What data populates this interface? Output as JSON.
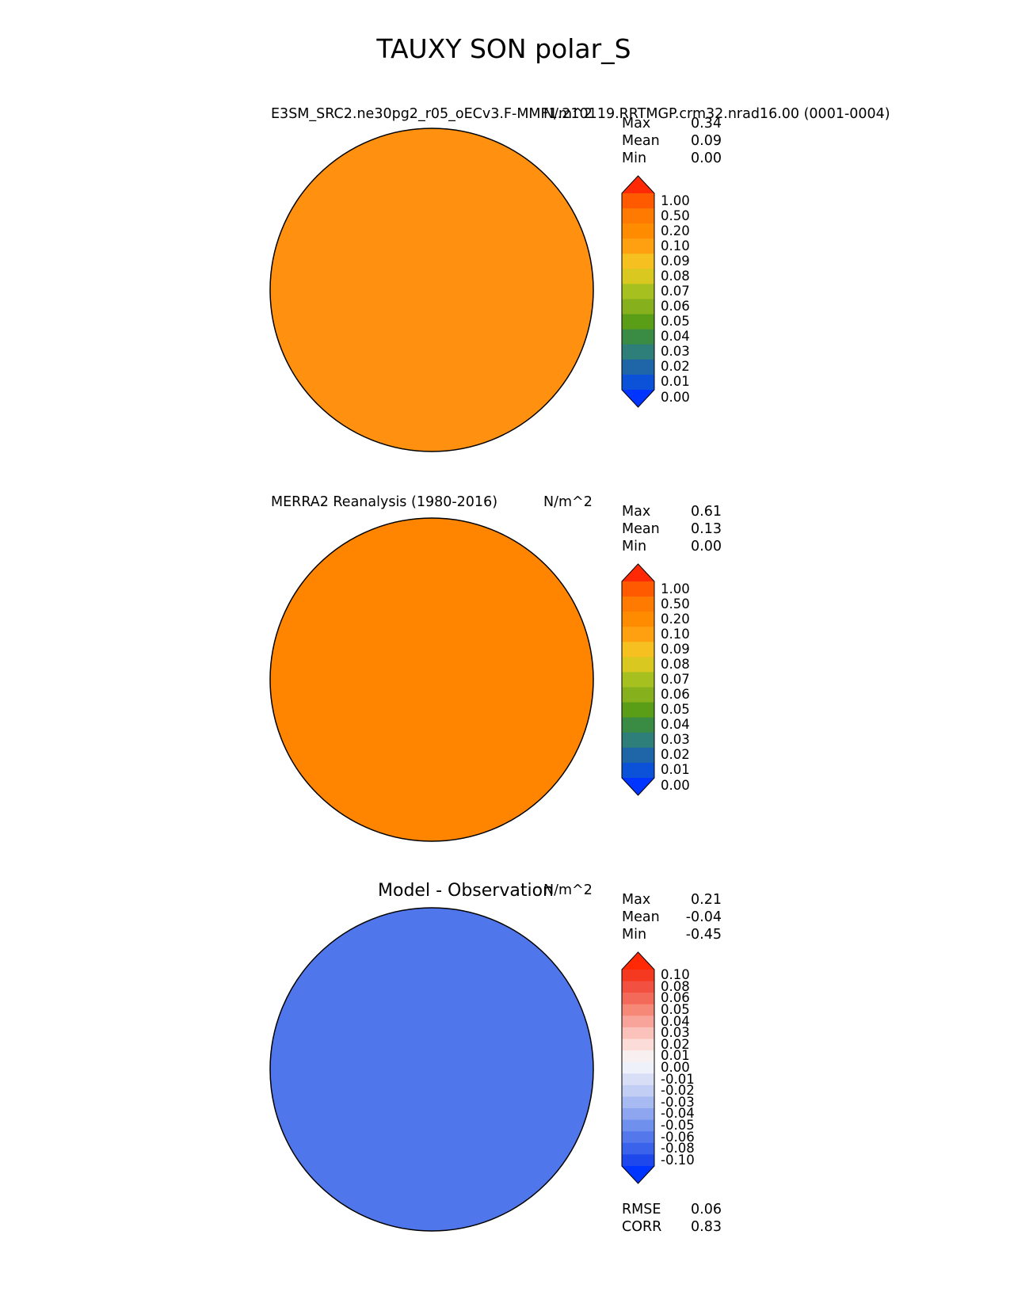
{
  "figure": {
    "title": "TAUXY SON polar_S"
  },
  "chart_data": [
    {
      "type": "heatmap",
      "projection": "south-polar-stereographic",
      "title_left": "E3SM_SRC2.ne30pg2_r05_oECv3.F-MMF1.210119.RRTMGP.crm32.nrad16.00 (0001-0004)",
      "units": "N/m^2",
      "stats": {
        "max_label": "Max",
        "max": "0.34",
        "mean_label": "Mean",
        "mean": "0.09",
        "min_label": "Min",
        "min": "0.00"
      },
      "colorbar": {
        "levels": [
          "1.00",
          "0.50",
          "0.20",
          "0.10",
          "0.09",
          "0.08",
          "0.07",
          "0.06",
          "0.05",
          "0.04",
          "0.03",
          "0.02",
          "0.01",
          "0.00"
        ],
        "colors": [
          "#ff2a05",
          "#ff5a00",
          "#ff7a00",
          "#ff8c00",
          "#ffa010",
          "#f6c020",
          "#d8c820",
          "#a6c020",
          "#86b01c",
          "#5a9e18",
          "#3a8c44",
          "#2e7e7a",
          "#1e66a8",
          "#0c52d8",
          "#0034ff"
        ],
        "extend": "both"
      }
    },
    {
      "type": "heatmap",
      "projection": "south-polar-stereographic",
      "title_left": "MERRA2 Reanalysis (1980-2016)",
      "units": "N/m^2",
      "stats": {
        "max_label": "Max",
        "max": "0.61",
        "mean_label": "Mean",
        "mean": "0.13",
        "min_label": "Min",
        "min": "0.00"
      },
      "colorbar": {
        "levels": [
          "1.00",
          "0.50",
          "0.20",
          "0.10",
          "0.09",
          "0.08",
          "0.07",
          "0.06",
          "0.05",
          "0.04",
          "0.03",
          "0.02",
          "0.01",
          "0.00"
        ],
        "colors": [
          "#ff2a05",
          "#ff5a00",
          "#ff7a00",
          "#ff8c00",
          "#ffa010",
          "#f6c020",
          "#d8c820",
          "#a6c020",
          "#86b01c",
          "#5a9e18",
          "#3a8c44",
          "#2e7e7a",
          "#1e66a8",
          "#0c52d8",
          "#0034ff"
        ],
        "extend": "both"
      }
    },
    {
      "type": "heatmap",
      "projection": "south-polar-stereographic",
      "title_center": "Model - Observation",
      "units": "N/m^2",
      "stats": {
        "max_label": "Max",
        "max": "0.21",
        "mean_label": "Mean",
        "mean": "-0.04",
        "min_label": "Min",
        "min": "-0.45"
      },
      "colorbar": {
        "levels": [
          "0.10",
          "0.08",
          "0.06",
          "0.05",
          "0.04",
          "0.03",
          "0.02",
          "0.01",
          "0.00",
          "-0.01",
          "-0.02",
          "-0.03",
          "-0.04",
          "-0.05",
          "-0.06",
          "-0.08",
          "-0.10"
        ],
        "colors": [
          "#ff2a05",
          "#f53820",
          "#f25040",
          "#f46a5a",
          "#f68878",
          "#f8a49a",
          "#fac2ba",
          "#fcdcd8",
          "#f8f0f0",
          "#eef0fa",
          "#d8def6",
          "#c2cef4",
          "#a8baf2",
          "#8ea6f0",
          "#7090ee",
          "#5478ec",
          "#3a62ea",
          "#1e48ec",
          "#0034ff"
        ],
        "extend": "both"
      },
      "metrics": {
        "rmse_label": "RMSE",
        "rmse": "0.06",
        "corr_label": "CORR",
        "corr": "0.83"
      }
    }
  ]
}
